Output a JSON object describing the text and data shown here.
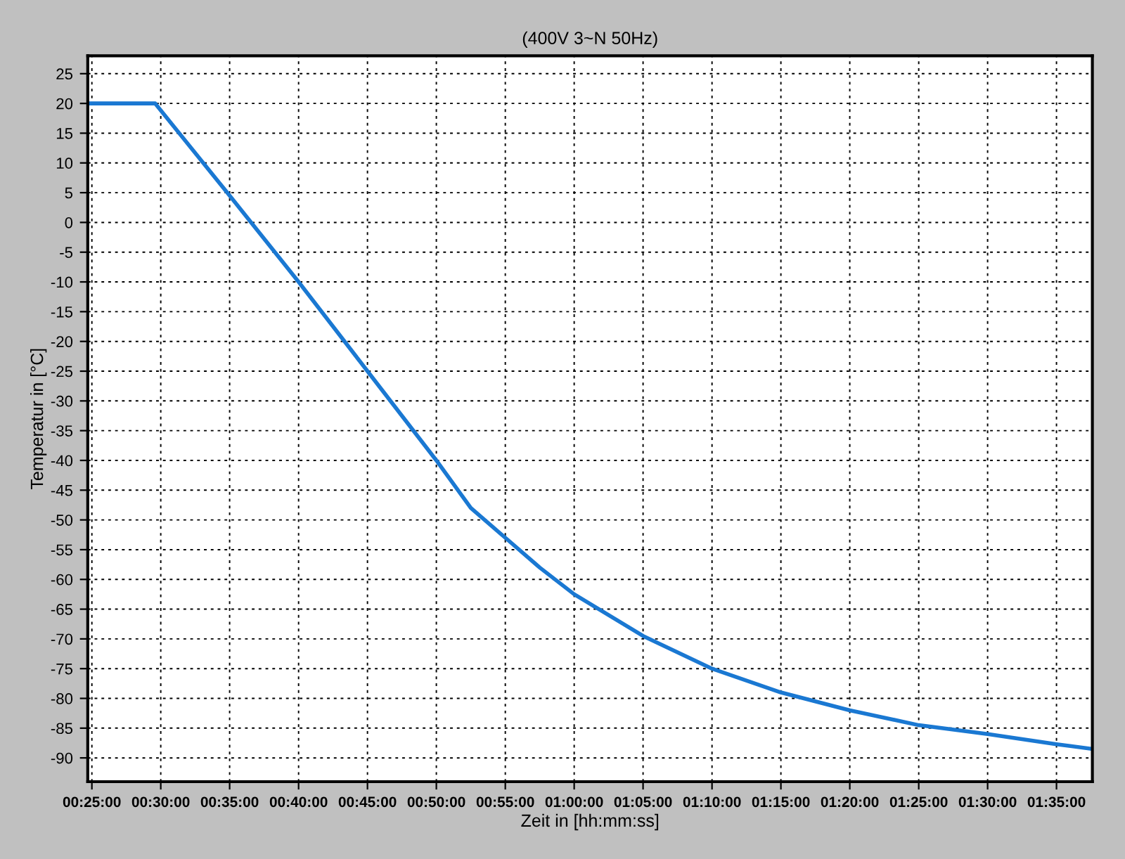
{
  "chart_data": {
    "type": "line",
    "title": "(400V 3~N 50Hz)",
    "xlabel": "Zeit in [hh:mm:ss]",
    "ylabel": "Temperatur in [°C]",
    "x": [
      0.4117,
      0.4933,
      0.5833,
      0.6667,
      0.75,
      0.8333,
      0.875,
      0.9167,
      0.9583,
      1.0,
      1.0833,
      1.1667,
      1.25,
      1.3333,
      1.4167,
      1.5,
      1.5833,
      1.6267
    ],
    "series": [
      {
        "color": "#1a78d2",
        "values": [
          20,
          20,
          4.5,
          -10,
          -25,
          -40,
          -48,
          -53,
          -58,
          -62.5,
          -69.5,
          -75,
          -79,
          -82,
          -84.5,
          -86,
          -87.7,
          -88.5
        ]
      }
    ],
    "xlim": [
      0.4117,
      1.6267
    ],
    "ylim": [
      -94,
      28
    ],
    "xticks": [
      {
        "value": 0.4167,
        "label": "00:25:00"
      },
      {
        "value": 0.5,
        "label": "00:30:00"
      },
      {
        "value": 0.5833,
        "label": "00:35:00"
      },
      {
        "value": 0.6667,
        "label": "00:40:00"
      },
      {
        "value": 0.75,
        "label": "00:45:00"
      },
      {
        "value": 0.8333,
        "label": "00:50:00"
      },
      {
        "value": 0.9167,
        "label": "00:55:00"
      },
      {
        "value": 1.0,
        "label": "01:00:00"
      },
      {
        "value": 1.0833,
        "label": "01:05:00"
      },
      {
        "value": 1.1667,
        "label": "01:10:00"
      },
      {
        "value": 1.25,
        "label": "01:15:00"
      },
      {
        "value": 1.3333,
        "label": "01:20:00"
      },
      {
        "value": 1.4167,
        "label": "01:25:00"
      },
      {
        "value": 1.5,
        "label": "01:30:00"
      },
      {
        "value": 1.5833,
        "label": "01:35:00"
      }
    ],
    "yticks": [
      -90,
      -85,
      -80,
      -75,
      -70,
      -65,
      -60,
      -55,
      -50,
      -45,
      -40,
      -35,
      -30,
      -25,
      -20,
      -15,
      -10,
      -5,
      0,
      5,
      10,
      15,
      20,
      25
    ],
    "grid": true,
    "marker": "none",
    "line_style": "solid",
    "legend": false
  }
}
